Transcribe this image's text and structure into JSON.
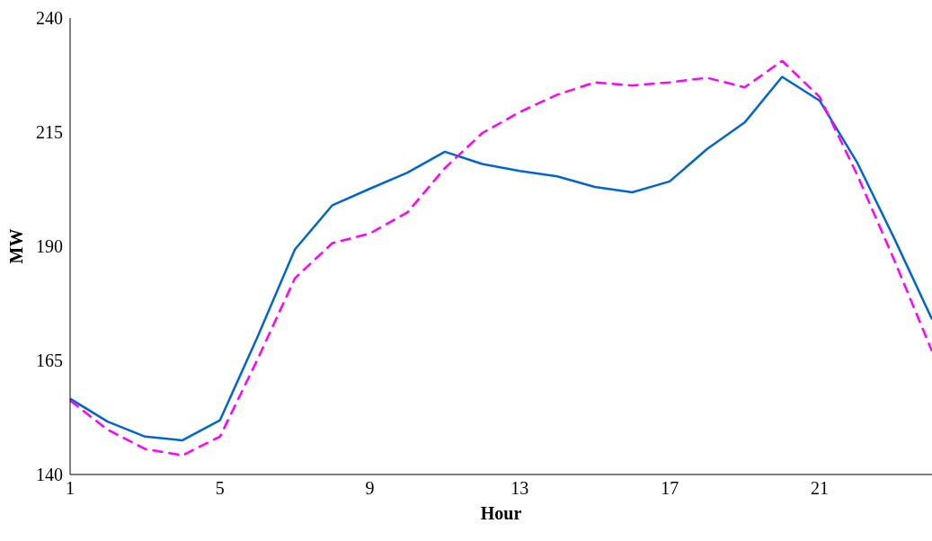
{
  "chart_data": {
    "type": "line",
    "xlabel": "Hour",
    "ylabel": "MW",
    "x": [
      1,
      2,
      3,
      4,
      5,
      6,
      7,
      8,
      9,
      10,
      11,
      12,
      13,
      14,
      15,
      16,
      17,
      18,
      19,
      20,
      21,
      22,
      23,
      24
    ],
    "series": [
      {
        "color": "#0066cc",
        "line_style": "solid",
        "values": [
          156.6,
          151.6,
          148.3,
          147.5,
          151.9,
          170.1,
          189.3,
          199.0,
          202.6,
          206.1,
          210.7,
          208.0,
          206.5,
          205.3,
          203.0,
          201.8,
          204.2,
          211.3,
          217.1,
          227.1,
          221.9,
          208.4,
          191.6,
          174
        ]
      },
      {
        "color": "#ff00ff",
        "line_style": "dashed",
        "values": [
          156.2,
          149.8,
          145.6,
          144.2,
          148.3,
          165.2,
          183.0,
          190.7,
          192.8,
          197.4,
          207.1,
          214.8,
          219.4,
          223.2,
          225.9,
          225.2,
          225.9,
          226.9,
          224.8,
          230.6,
          222.7,
          205.7,
          186.8,
          167
        ]
      }
    ],
    "xlim": [
      1,
      24
    ],
    "xticks": [
      1,
      5,
      9,
      13,
      17,
      21
    ],
    "ylim": [
      140,
      240
    ],
    "yticks": [
      140,
      165,
      190,
      215,
      240
    ],
    "grid": false,
    "legend": false,
    "marker": "none"
  }
}
